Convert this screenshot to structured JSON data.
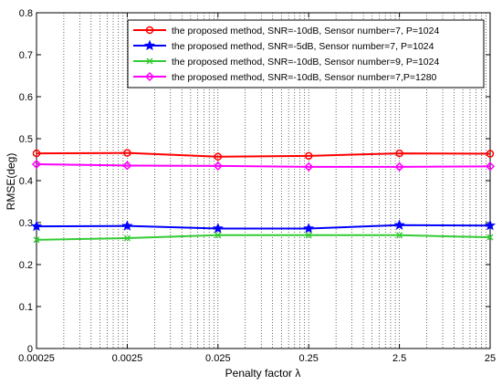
{
  "chart_data": {
    "type": "line",
    "xlabel": "Penalty factor λ",
    "ylabel": "RMSE(deg)",
    "x_scale": "log",
    "x": [
      0.00025,
      0.0025,
      0.025,
      0.25,
      2.5,
      25
    ],
    "x_tick_labels": [
      "0.00025",
      "0.0025",
      "0.025",
      "0.25",
      "2.5",
      "25"
    ],
    "ylim": [
      0,
      0.8
    ],
    "y_ticks": [
      0,
      0.1,
      0.2,
      0.3,
      0.4,
      0.5,
      0.6,
      0.7,
      0.8
    ],
    "y_tick_labels": [
      "0",
      "0.1",
      "0.2",
      "0.3",
      "0.4",
      "0.5",
      "0.6",
      "0.7",
      "0.8"
    ],
    "grid": "dotted, x-axis major and minor",
    "legend_position": "top-right",
    "series": [
      {
        "name": "the proposed method, SNR=-10dB, Sensor number=7, P=1024",
        "color": "#ff0000",
        "marker": "circle",
        "values": [
          0.465,
          0.466,
          0.457,
          0.459,
          0.465,
          0.464
        ]
      },
      {
        "name": "the proposed method, SNR=-5dB, Sensor number=7, P=1024",
        "color": "#0000ff",
        "marker": "star",
        "values": [
          0.291,
          0.292,
          0.286,
          0.286,
          0.294,
          0.293
        ]
      },
      {
        "name": "the proposed method, SNR=-10dB, Sensor number=9, P=1024",
        "color": "#33cc33",
        "marker": "x",
        "values": [
          0.259,
          0.263,
          0.27,
          0.27,
          0.27,
          0.265
        ]
      },
      {
        "name": "the proposed method, SNR=-10dB, Sensor number=7,P=1280",
        "color": "#ff00ff",
        "marker": "diamond",
        "values": [
          0.439,
          0.436,
          0.435,
          0.433,
          0.433,
          0.434
        ]
      }
    ]
  }
}
